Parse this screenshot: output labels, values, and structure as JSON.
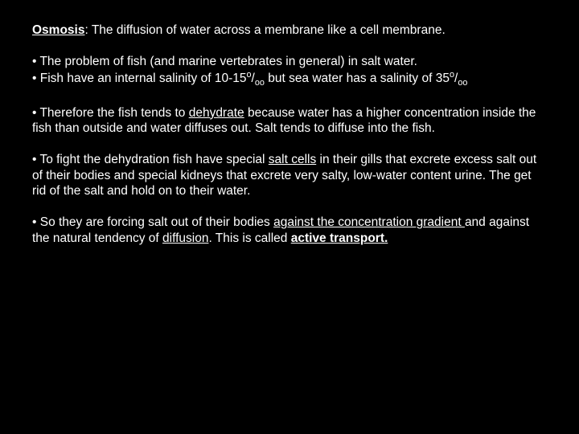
{
  "p1": {
    "term": "Osmosis",
    "rest": ":  The diffusion of water across a membrane like a cell membrane."
  },
  "p2": {
    "l1": "The problem of fish (and marine vertebrates in general) in salt water.",
    "l2a": "Fish have an internal salinity of 10-15",
    "l2b": " but sea water has a salinity of 35",
    "permil_sup": "o",
    "permil_slash": "/",
    "permil_sub": "oo"
  },
  "p3": {
    "a": "Therefore the fish tends to ",
    "deh": "dehydrate",
    "b": " because water has a higher concentration inside the fish than outside and water diffuses out.  Salt tends to diffuse into the fish."
  },
  "p4": {
    "a": "To fight the dehydration fish have special ",
    "sc": "salt cells",
    "b": " in their gills that excrete excess salt out of their bodies and special kidneys that excrete very salty, low-water content urine.  The get rid of the salt and hold on to their water."
  },
  "p5": {
    "a": "So they are forcing salt out of their bodies ",
    "acg": "against the concentration gradient ",
    "b": "and against the natural tendency of ",
    "dif": "diffusion",
    "c": ".  This is called ",
    "at": "active transport."
  }
}
